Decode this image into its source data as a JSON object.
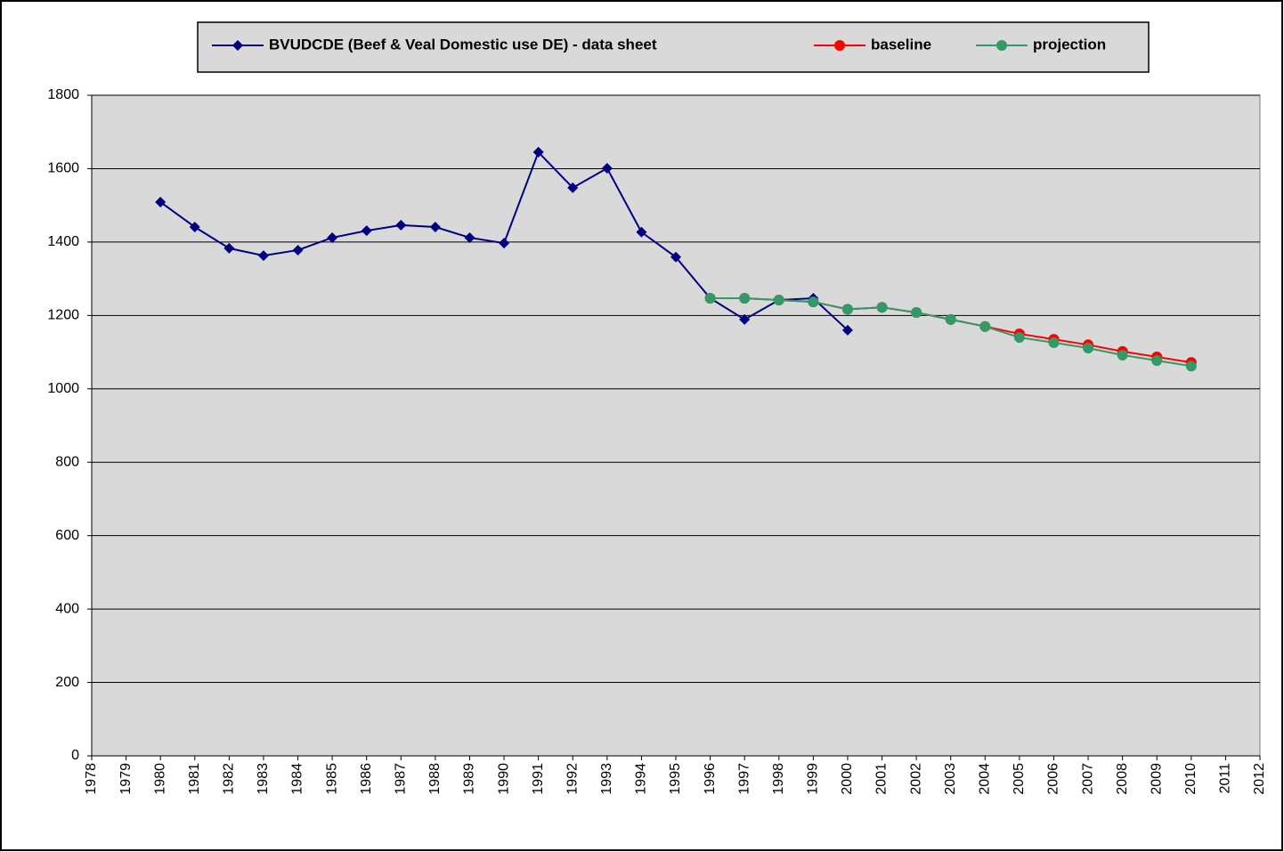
{
  "chart_data": {
    "type": "line",
    "categories": [
      "1978",
      "1979",
      "1980",
      "1981",
      "1982",
      "1983",
      "1984",
      "1985",
      "1986",
      "1987",
      "1988",
      "1989",
      "1990",
      "1991",
      "1992",
      "1993",
      "1994",
      "1995",
      "1996",
      "1997",
      "1998",
      "1999",
      "2000",
      "2001",
      "2002",
      "2003",
      "2004",
      "2005",
      "2006",
      "2007",
      "2008",
      "2009",
      "2010",
      "2011",
      "2012"
    ],
    "series": [
      {
        "name": "BVUDCDE (Beef & Veal Domestic use DE) - data sheet",
        "color": "#000080",
        "marker": "diamond",
        "values": [
          null,
          null,
          1509,
          1441,
          1383,
          1363,
          1378,
          1412,
          1431,
          1446,
          1441,
          1412,
          1397,
          1645,
          1548,
          1601,
          1427,
          1359,
          1247,
          1189,
          1242,
          1247,
          1160,
          null,
          null,
          null,
          null,
          null,
          null,
          null,
          null,
          null,
          null,
          null,
          null
        ]
      },
      {
        "name": "baseline",
        "color": "#ff0000",
        "marker": "circle",
        "values": [
          null,
          null,
          null,
          null,
          null,
          null,
          null,
          null,
          null,
          null,
          null,
          null,
          null,
          null,
          null,
          null,
          null,
          null,
          1247,
          1247,
          1242,
          1237,
          1217,
          1222,
          1208,
          1189,
          1170,
          1150,
          1135,
          1120,
          1102,
          1087,
          1072,
          null,
          null
        ]
      },
      {
        "name": "projection",
        "color": "#339966",
        "marker": "circle",
        "values": [
          null,
          null,
          null,
          null,
          null,
          null,
          null,
          null,
          null,
          null,
          null,
          null,
          null,
          null,
          null,
          null,
          null,
          null,
          1247,
          1247,
          1242,
          1237,
          1217,
          1222,
          1208,
          1189,
          1170,
          1140,
          1126,
          1111,
          1092,
          1077,
          1062,
          null,
          null
        ]
      }
    ],
    "ylim": [
      0,
      1800
    ],
    "yticks": [
      0,
      200,
      400,
      600,
      800,
      1000,
      1200,
      1400,
      1600,
      1800
    ],
    "grid": true,
    "legend": "top",
    "plot_background": "#d9d9d9"
  }
}
